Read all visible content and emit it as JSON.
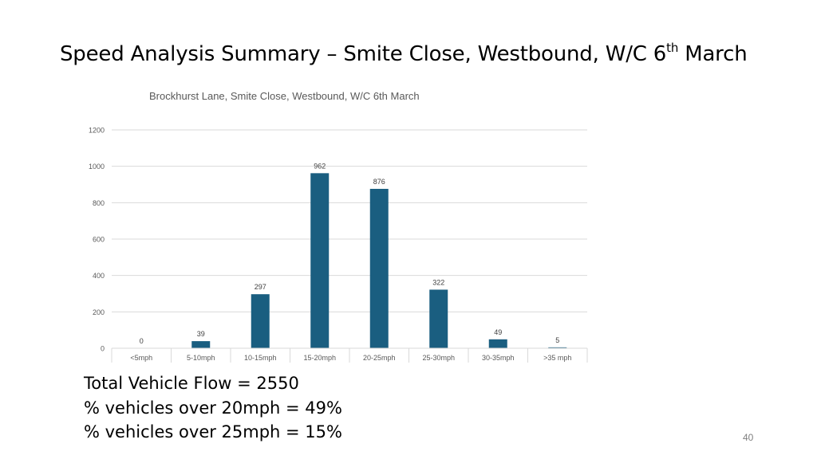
{
  "slide": {
    "title_main": "Speed Analysis Summary – Smite Close, Westbound, W/C 6",
    "title_sup": "th",
    "title_tail": " March",
    "page_number": "40"
  },
  "stats": [
    "Total Vehicle Flow = 2550",
    "% vehicles over 20mph = 49%",
    "% vehicles over 25mph = 15%"
  ],
  "chart_data": {
    "type": "bar",
    "title": "Brockhurst Lane, Smite Close, Westbound, W/C 6th March",
    "xlabel": "",
    "ylabel": "",
    "categories": [
      "<5mph",
      "5-10mph",
      "10-15mph",
      "15-20mph",
      "20-25mph",
      "25-30mph",
      "30-35mph",
      ">35 mph"
    ],
    "values": [
      0,
      39,
      297,
      962,
      876,
      322,
      49,
      5
    ],
    "data_labels": [
      "0",
      "39",
      "297",
      "962",
      "876",
      "322",
      "49",
      "5"
    ],
    "ylim": [
      0,
      1200
    ],
    "yticks": [
      0,
      200,
      400,
      600,
      800,
      1000,
      1200
    ],
    "grid": true,
    "legend": "none",
    "bar_color": "#1a5e80"
  }
}
